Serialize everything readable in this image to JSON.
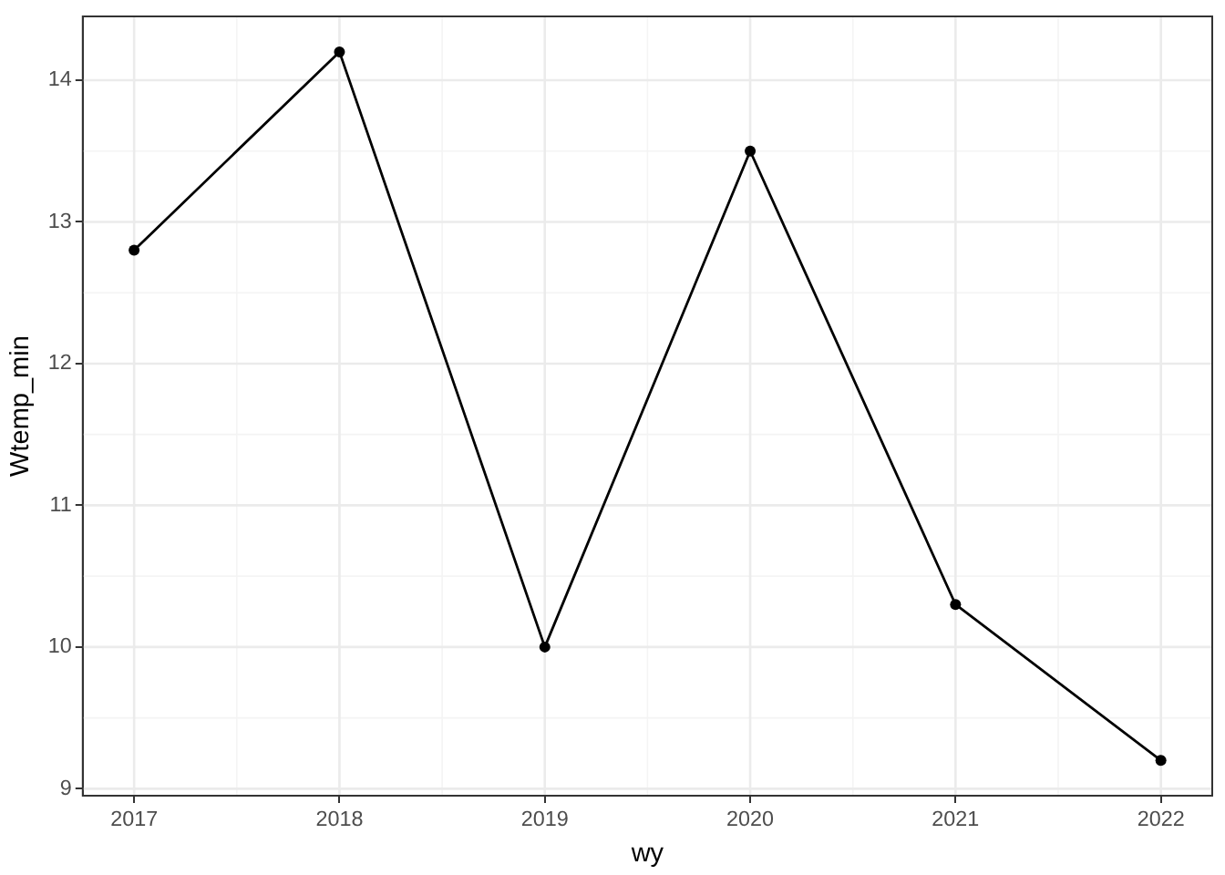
{
  "chart_data": {
    "type": "line",
    "xlabel": "wy",
    "ylabel": "Wtemp_min",
    "x": [
      2017,
      2018,
      2019,
      2020,
      2021,
      2022
    ],
    "series": [
      {
        "color": "#000000",
        "values": [
          12.8,
          14.2,
          10.0,
          13.5,
          10.3,
          9.2
        ]
      }
    ],
    "xlim": [
      2016.75,
      2022.25
    ],
    "xticks": [
      2017,
      2018,
      2019,
      2020,
      2021,
      2022
    ],
    "ylim": [
      8.95,
      14.45
    ],
    "yticks": [
      9,
      10,
      11,
      12,
      13,
      14
    ],
    "grid": true,
    "marker": "circle",
    "line_style": "solid"
  }
}
